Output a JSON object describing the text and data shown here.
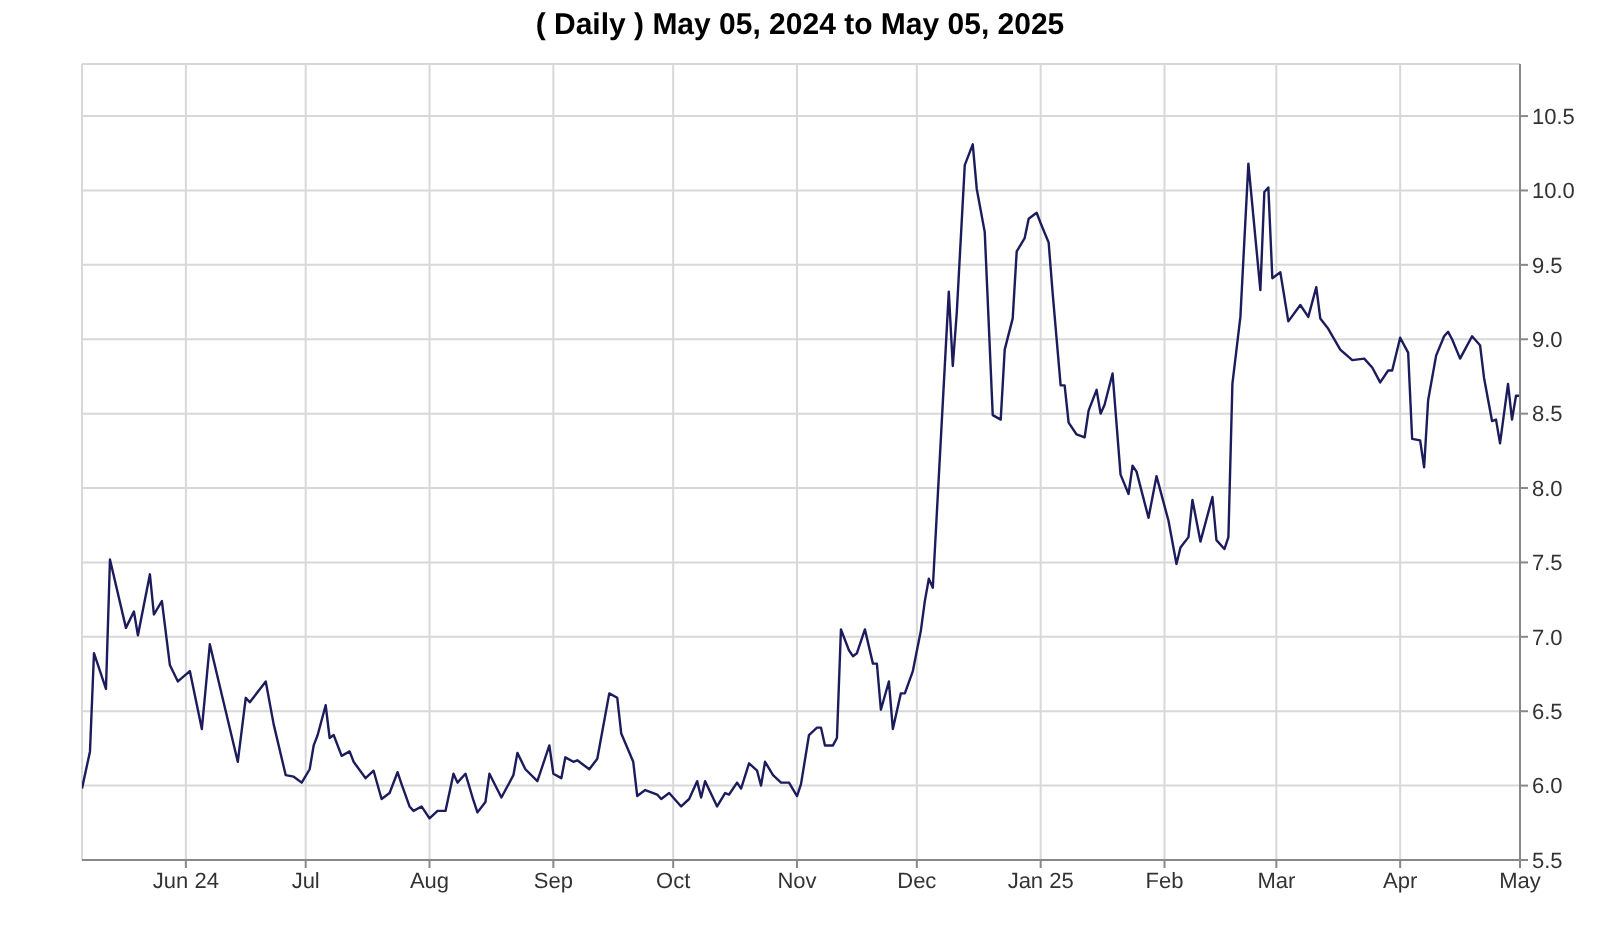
{
  "chart_data": {
    "type": "line",
    "title": "( Daily ) May 05, 2024 to May 05, 2025",
    "x": [
      "2024-05-06",
      "2024-05-08",
      "2024-05-09",
      "2024-05-12",
      "2024-05-13",
      "2024-05-17",
      "2024-05-19",
      "2024-05-20",
      "2024-05-23",
      "2024-05-24",
      "2024-05-26",
      "2024-05-28",
      "2024-05-30",
      "2024-06-02",
      "2024-06-05",
      "2024-06-07",
      "2024-06-10",
      "2024-06-14",
      "2024-06-16",
      "2024-06-17",
      "2024-06-21",
      "2024-06-23",
      "2024-06-26",
      "2024-06-28",
      "2024-06-30",
      "2024-07-02",
      "2024-07-03",
      "2024-07-04",
      "2024-07-06",
      "2024-07-07",
      "2024-07-08",
      "2024-07-10",
      "2024-07-12",
      "2024-07-13",
      "2024-07-16",
      "2024-07-18",
      "2024-07-20",
      "2024-07-22",
      "2024-07-24",
      "2024-07-25",
      "2024-07-27",
      "2024-07-28",
      "2024-07-30",
      "2024-08-01",
      "2024-08-03",
      "2024-08-05",
      "2024-08-07",
      "2024-08-08",
      "2024-08-10",
      "2024-08-12",
      "2024-08-13",
      "2024-08-15",
      "2024-08-16",
      "2024-08-19",
      "2024-08-22",
      "2024-08-23",
      "2024-08-25",
      "2024-08-28",
      "2024-08-31",
      "2024-09-01",
      "2024-09-03",
      "2024-09-04",
      "2024-09-06",
      "2024-09-07",
      "2024-09-10",
      "2024-09-12",
      "2024-09-15",
      "2024-09-17",
      "2024-09-18",
      "2024-09-21",
      "2024-09-22",
      "2024-09-24",
      "2024-09-27",
      "2024-09-28",
      "2024-09-30",
      "2024-10-03",
      "2024-10-05",
      "2024-10-07",
      "2024-10-08",
      "2024-10-09",
      "2024-10-12",
      "2024-10-14",
      "2024-10-15",
      "2024-10-17",
      "2024-10-18",
      "2024-10-20",
      "2024-10-22",
      "2024-10-23",
      "2024-10-24",
      "2024-10-26",
      "2024-10-28",
      "2024-10-30",
      "2024-11-01",
      "2024-11-02",
      "2024-11-04",
      "2024-11-06",
      "2024-11-07",
      "2024-11-08",
      "2024-11-10",
      "2024-11-11",
      "2024-11-12",
      "2024-11-14",
      "2024-11-15",
      "2024-11-16",
      "2024-11-18",
      "2024-11-20",
      "2024-11-21",
      "2024-11-22",
      "2024-11-24",
      "2024-11-25",
      "2024-11-27",
      "2024-11-28",
      "2024-11-30",
      "2024-12-02",
      "2024-12-03",
      "2024-12-04",
      "2024-12-05",
      "2024-12-09",
      "2024-12-10",
      "2024-12-11",
      "2024-12-13",
      "2024-12-15",
      "2024-12-16",
      "2024-12-18",
      "2024-12-20",
      "2024-12-22",
      "2024-12-23",
      "2024-12-25",
      "2024-12-26",
      "2024-12-28",
      "2024-12-29",
      "2024-12-31",
      "2025-01-01",
      "2025-01-03",
      "2025-01-04",
      "2025-01-06",
      "2025-01-07",
      "2025-01-08",
      "2025-01-10",
      "2025-01-12",
      "2025-01-13",
      "2025-01-15",
      "2025-01-16",
      "2025-01-17",
      "2025-01-19",
      "2025-01-20",
      "2025-01-21",
      "2025-01-23",
      "2025-01-24",
      "2025-01-25",
      "2025-01-28",
      "2025-01-30",
      "2025-02-02",
      "2025-02-04",
      "2025-02-05",
      "2025-02-07",
      "2025-02-08",
      "2025-02-10",
      "2025-02-13",
      "2025-02-14",
      "2025-02-16",
      "2025-02-17",
      "2025-02-18",
      "2025-02-20",
      "2025-02-22",
      "2025-02-25",
      "2025-02-26",
      "2025-02-27",
      "2025-02-28",
      "2025-03-02",
      "2025-03-04",
      "2025-03-07",
      "2025-03-09",
      "2025-03-11",
      "2025-03-12",
      "2025-03-14",
      "2025-03-17",
      "2025-03-20",
      "2025-03-23",
      "2025-03-25",
      "2025-03-27",
      "2025-03-29",
      "2025-03-30",
      "2025-04-01",
      "2025-04-03",
      "2025-04-04",
      "2025-04-06",
      "2025-04-07",
      "2025-04-08",
      "2025-04-10",
      "2025-04-12",
      "2025-04-13",
      "2025-04-14",
      "2025-04-16",
      "2025-04-17",
      "2025-04-19",
      "2025-04-21",
      "2025-04-22",
      "2025-04-24",
      "2025-04-25",
      "2025-04-26",
      "2025-04-28",
      "2025-04-29",
      "2025-04-30",
      "2025-05-01"
    ],
    "series": [
      {
        "color": "#1c1c5c",
        "values": [
          5.98,
          6.23,
          6.89,
          6.65,
          7.52,
          7.06,
          7.17,
          7.01,
          7.42,
          7.15,
          7.24,
          6.81,
          6.7,
          6.77,
          6.38,
          6.95,
          6.61,
          6.16,
          6.59,
          6.56,
          6.7,
          6.41,
          6.07,
          6.06,
          6.02,
          6.11,
          6.27,
          6.34,
          6.54,
          6.32,
          6.34,
          6.2,
          6.23,
          6.16,
          6.05,
          6.1,
          5.91,
          5.95,
          6.09,
          6.01,
          5.86,
          5.83,
          5.86,
          5.78,
          5.83,
          5.83,
          6.08,
          6.02,
          6.08,
          5.9,
          5.82,
          5.89,
          6.08,
          5.92,
          6.07,
          6.22,
          6.11,
          6.03,
          6.27,
          6.08,
          6.05,
          6.19,
          6.16,
          6.17,
          6.11,
          6.18,
          6.62,
          6.59,
          6.35,
          6.16,
          5.93,
          5.97,
          5.94,
          5.91,
          5.95,
          5.86,
          5.91,
          6.03,
          5.92,
          6.03,
          5.86,
          5.95,
          5.94,
          6.02,
          5.98,
          6.15,
          6.1,
          6.0,
          6.16,
          6.07,
          6.02,
          6.02,
          5.93,
          6.01,
          6.34,
          6.39,
          6.39,
          6.27,
          6.27,
          6.32,
          7.05,
          6.91,
          6.87,
          6.89,
          7.05,
          6.82,
          6.82,
          6.51,
          6.7,
          6.38,
          6.62,
          6.62,
          6.77,
          7.04,
          7.24,
          7.39,
          7.33,
          9.32,
          8.82,
          9.18,
          10.17,
          10.31,
          10.01,
          9.72,
          8.49,
          8.46,
          8.93,
          9.14,
          9.59,
          9.68,
          9.81,
          9.85,
          9.78,
          9.65,
          9.31,
          8.69,
          8.69,
          8.44,
          8.36,
          8.34,
          8.52,
          8.66,
          8.5,
          8.56,
          8.77,
          8.43,
          8.09,
          7.96,
          8.15,
          8.11,
          7.8,
          8.08,
          7.78,
          7.49,
          7.6,
          7.67,
          7.92,
          7.64,
          7.94,
          7.65,
          7.59,
          7.67,
          8.7,
          9.15,
          10.18,
          9.33,
          9.99,
          10.02,
          9.41,
          9.45,
          9.12,
          9.23,
          9.15,
          9.35,
          9.14,
          9.07,
          8.93,
          8.86,
          8.87,
          8.81,
          8.71,
          8.79,
          8.79,
          9.01,
          8.91,
          8.33,
          8.32,
          8.14,
          8.59,
          8.89,
          9.02,
          9.05,
          9.0,
          8.87,
          8.92,
          9.02,
          8.96,
          8.74,
          8.45,
          8.46,
          8.3,
          8.7,
          8.46,
          8.62,
          8.62
        ]
      }
    ],
    "xlim": [
      "2024-05-06",
      "2025-05-01"
    ],
    "xticks": [
      {
        "value": "2024-06-01",
        "label": "Jun 24"
      },
      {
        "value": "2024-07-01",
        "label": "Jul"
      },
      {
        "value": "2024-08-01",
        "label": "Aug"
      },
      {
        "value": "2024-09-01",
        "label": "Sep"
      },
      {
        "value": "2024-10-01",
        "label": "Oct"
      },
      {
        "value": "2024-11-01",
        "label": "Nov"
      },
      {
        "value": "2024-12-01",
        "label": "Dec"
      },
      {
        "value": "2025-01-01",
        "label": "Jan 25"
      },
      {
        "value": "2025-02-01",
        "label": "Feb"
      },
      {
        "value": "2025-03-01",
        "label": "Mar"
      },
      {
        "value": "2025-04-01",
        "label": "Apr"
      },
      {
        "value": "2025-05-01",
        "label": "May"
      }
    ],
    "ylim": [
      5.5,
      10.85
    ],
    "yticks": [
      5.5,
      {
        "value": 6,
        "label": "6.0"
      },
      6.5,
      {
        "value": 7,
        "label": "7.0"
      },
      7.5,
      {
        "value": 8,
        "label": "8.0"
      },
      8.5,
      {
        "value": 9,
        "label": "9.0"
      },
      9.5,
      {
        "value": 10,
        "label": "10.0"
      },
      10.5
    ],
    "grid": true,
    "marker": "none",
    "line_style": "solid"
  }
}
